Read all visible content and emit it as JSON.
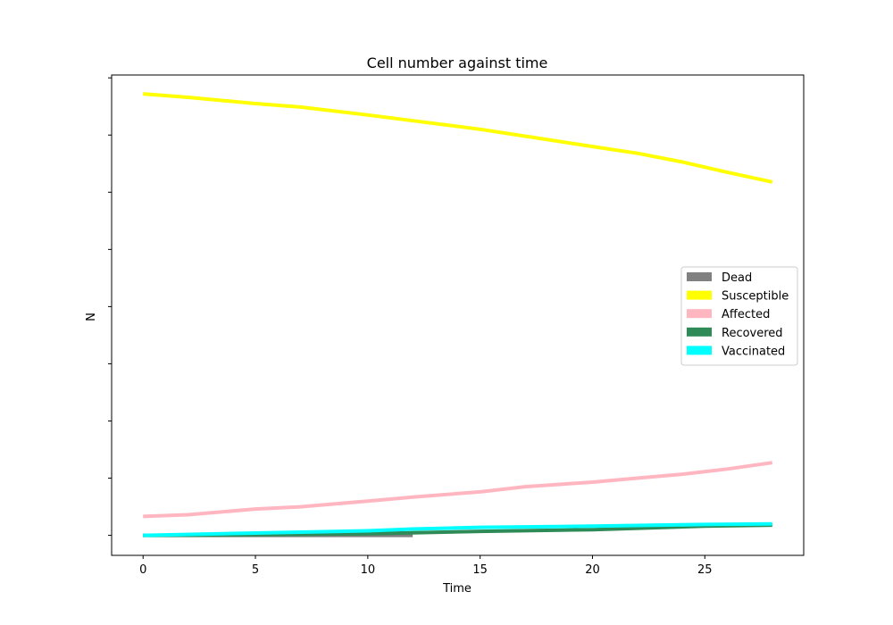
{
  "chart_data": {
    "type": "line",
    "title": "Cell number against time",
    "xlabel": "Time",
    "ylabel": "N",
    "x_ticks": [
      0,
      5,
      10,
      15,
      20,
      25
    ],
    "xlim": [
      -1.4,
      29.4
    ],
    "ylim": [
      -0.35,
      8.05
    ],
    "y_tick_count": 9,
    "y_tick_labels_shown": false,
    "grid": false,
    "legend_position": "center-right",
    "series": [
      {
        "name": "Dead",
        "color": "#808080",
        "x": [
          0,
          2,
          4,
          6,
          8,
          10,
          12
        ],
        "y": [
          0,
          0,
          0,
          0,
          0,
          0,
          0
        ]
      },
      {
        "name": "Susceptible",
        "color": "#ffff00",
        "x": [
          0,
          2,
          5,
          7,
          10,
          12,
          15,
          17,
          20,
          22,
          24,
          26,
          28
        ],
        "y": [
          7.72,
          7.66,
          7.55,
          7.49,
          7.35,
          7.25,
          7.1,
          6.98,
          6.8,
          6.68,
          6.53,
          6.35,
          6.18
        ]
      },
      {
        "name": "Affected",
        "color": "#ffb6c1",
        "x": [
          0,
          2,
          5,
          7,
          10,
          12,
          15,
          17,
          20,
          22,
          24,
          26,
          28
        ],
        "y": [
          0.33,
          0.36,
          0.46,
          0.5,
          0.6,
          0.67,
          0.76,
          0.85,
          0.93,
          1.0,
          1.07,
          1.16,
          1.27
        ]
      },
      {
        "name": "Recovered",
        "color": "#2e8b57",
        "x": [
          0,
          5,
          10,
          15,
          20,
          25,
          28
        ],
        "y": [
          0,
          0.01,
          0.03,
          0.07,
          0.1,
          0.16,
          0.18
        ]
      },
      {
        "name": "Vaccinated",
        "color": "#00ffff",
        "x": [
          0,
          5,
          10,
          12,
          15,
          20,
          25,
          28
        ],
        "y": [
          0,
          0.04,
          0.08,
          0.11,
          0.14,
          0.16,
          0.19,
          0.2
        ]
      }
    ]
  }
}
